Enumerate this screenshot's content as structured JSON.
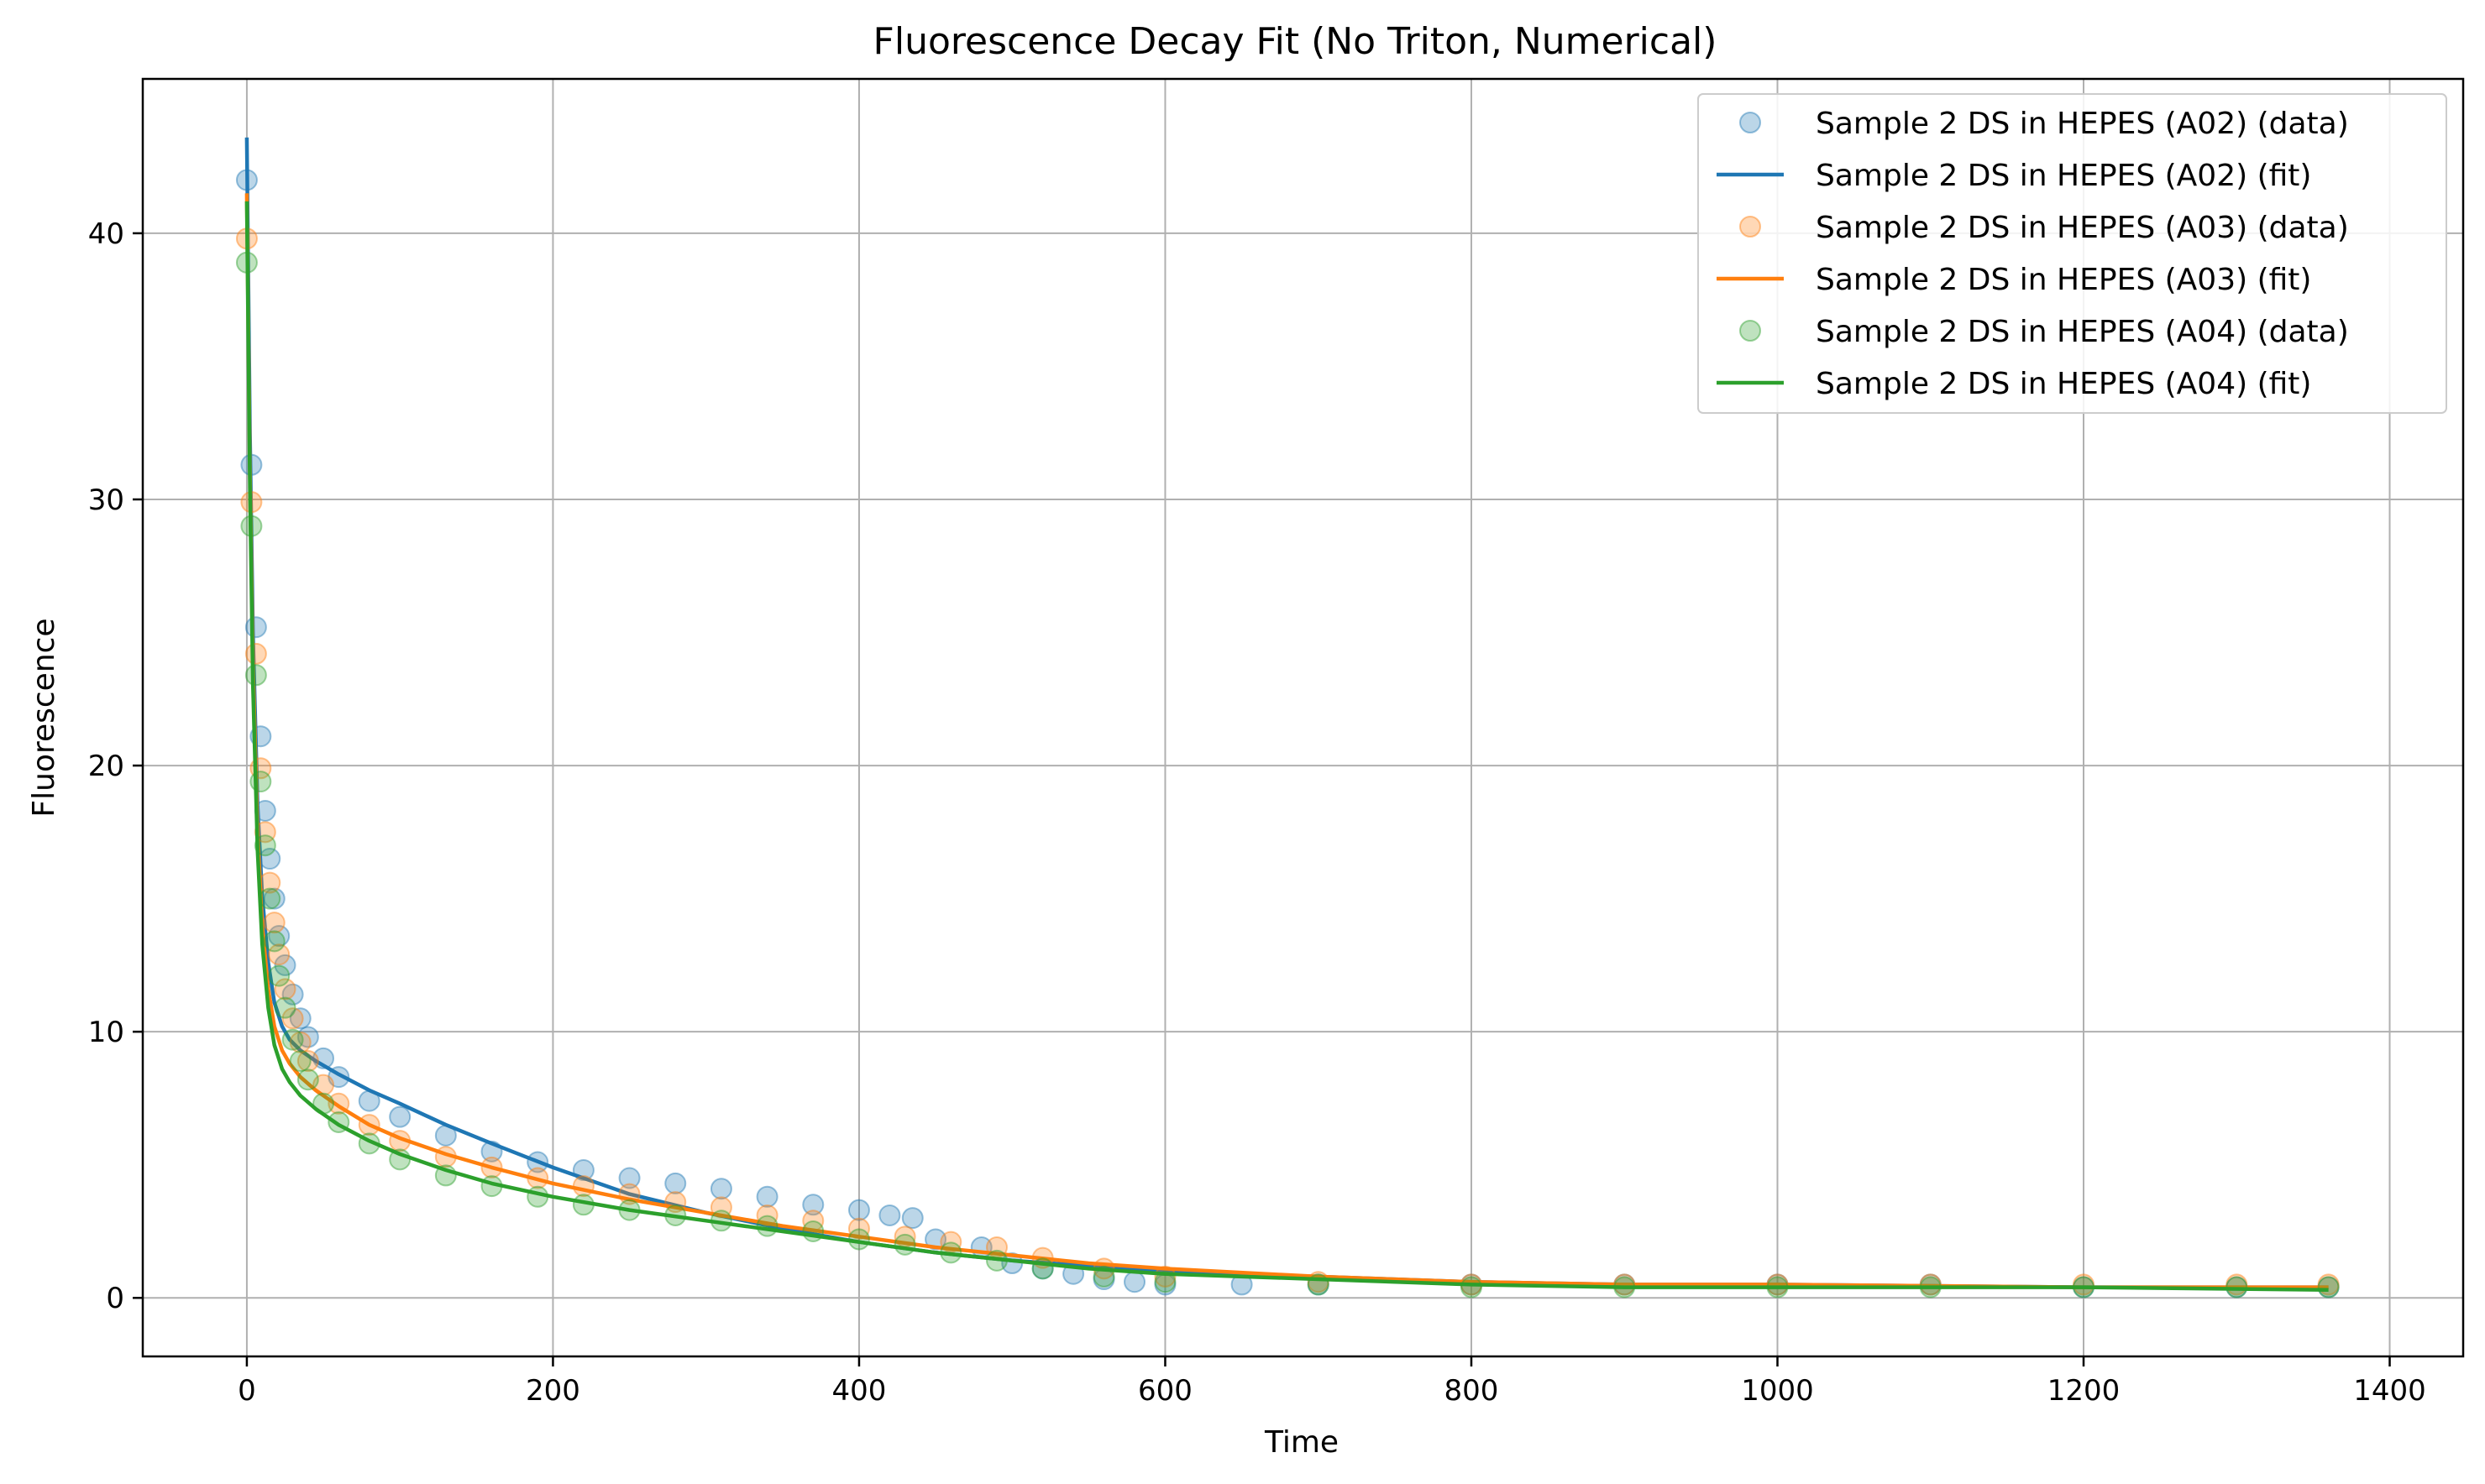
{
  "chart_data": {
    "type": "scatter",
    "title": "Fluorescence Decay Fit (No Triton, Numerical)",
    "xlabel": "Time",
    "ylabel": "Fluorescence",
    "xlim": [
      -68,
      1448
    ],
    "ylim": [
      -2.2,
      45.8
    ],
    "xticks": [
      0,
      200,
      400,
      600,
      800,
      1000,
      1200,
      1400
    ],
    "yticks": [
      0,
      10,
      20,
      30,
      40
    ],
    "grid": true,
    "legend_position": "top-right",
    "legend": [
      "Sample 2 DS in HEPES (A02) (data)",
      "Sample 2 DS in HEPES (A02) (fit)",
      "Sample 2 DS in HEPES (A03) (data)",
      "Sample 2 DS in HEPES (A03) (fit)",
      "Sample 2 DS in HEPES (A04) (data)",
      "Sample 2 DS in HEPES (A04) (fit)"
    ],
    "series": [
      {
        "name": "Sample 2 DS in HEPES (A02) (data)",
        "kind": "scatter",
        "color": "#1f77b4",
        "x": [
          0,
          3,
          6,
          9,
          12,
          15,
          18,
          21,
          25,
          30,
          35,
          40,
          50,
          60,
          80,
          100,
          130,
          160,
          190,
          220,
          250,
          280,
          310,
          340,
          370,
          400,
          420,
          435,
          450,
          480,
          500,
          520,
          540,
          560,
          580,
          600,
          650,
          700,
          800,
          900,
          1000,
          1100,
          1200,
          1300,
          1360
        ],
        "y": [
          42.0,
          31.3,
          25.2,
          21.1,
          18.3,
          16.5,
          15.0,
          13.6,
          12.5,
          11.4,
          10.5,
          9.8,
          9.0,
          8.3,
          7.4,
          6.8,
          6.1,
          5.5,
          5.1,
          4.8,
          4.5,
          4.3,
          4.1,
          3.8,
          3.5,
          3.3,
          3.1,
          3.0,
          2.2,
          1.9,
          1.3,
          1.1,
          0.9,
          0.7,
          0.6,
          0.5,
          0.5,
          0.5,
          0.5,
          0.5,
          0.5,
          0.5,
          0.4,
          0.4,
          0.4
        ]
      },
      {
        "name": "Sample 2 DS in HEPES (A02) (fit)",
        "kind": "line",
        "color": "#1f77b4",
        "x": [
          0,
          2,
          4,
          7,
          10,
          14,
          18,
          23,
          28,
          35,
          45,
          60,
          80,
          100,
          130,
          160,
          200,
          250,
          300,
          350,
          400,
          450,
          500,
          550,
          600,
          700,
          800,
          900,
          1000,
          1200,
          1360
        ],
        "y": [
          43.6,
          32.5,
          25.0,
          18.5,
          15.1,
          12.6,
          11.1,
          10.2,
          9.7,
          9.3,
          8.9,
          8.4,
          7.8,
          7.3,
          6.5,
          5.8,
          4.9,
          3.9,
          3.2,
          2.6,
          2.1,
          1.7,
          1.4,
          1.2,
          1.0,
          0.8,
          0.6,
          0.5,
          0.5,
          0.4,
          0.4
        ]
      },
      {
        "name": "Sample 2 DS in HEPES (A03) (data)",
        "kind": "scatter",
        "color": "#ff7f0e",
        "x": [
          0,
          3,
          6,
          9,
          12,
          15,
          18,
          21,
          25,
          30,
          35,
          40,
          50,
          60,
          80,
          100,
          130,
          160,
          190,
          220,
          250,
          280,
          310,
          340,
          370,
          400,
          430,
          460,
          490,
          520,
          560,
          600,
          700,
          800,
          900,
          1000,
          1100,
          1200,
          1300,
          1360
        ],
        "y": [
          39.8,
          29.9,
          24.2,
          19.9,
          17.5,
          15.6,
          14.1,
          12.9,
          11.6,
          10.5,
          9.6,
          8.9,
          8.0,
          7.3,
          6.5,
          5.9,
          5.3,
          4.9,
          4.5,
          4.2,
          3.9,
          3.6,
          3.4,
          3.1,
          2.9,
          2.6,
          2.3,
          2.1,
          1.9,
          1.5,
          1.1,
          0.8,
          0.6,
          0.5,
          0.5,
          0.5,
          0.5,
          0.5,
          0.5,
          0.5
        ]
      },
      {
        "name": "Sample 2 DS in HEPES (A03) (fit)",
        "kind": "line",
        "color": "#ff7f0e",
        "x": [
          0,
          2,
          4,
          7,
          10,
          14,
          18,
          23,
          28,
          35,
          45,
          60,
          80,
          100,
          130,
          160,
          200,
          250,
          300,
          350,
          400,
          450,
          500,
          550,
          600,
          700,
          800,
          900,
          1000,
          1200,
          1360
        ],
        "y": [
          41.5,
          31.0,
          23.8,
          17.5,
          14.0,
          11.6,
          10.2,
          9.3,
          8.8,
          8.3,
          7.8,
          7.2,
          6.5,
          6.0,
          5.4,
          4.9,
          4.3,
          3.7,
          3.2,
          2.7,
          2.3,
          1.9,
          1.6,
          1.3,
          1.1,
          0.8,
          0.6,
          0.5,
          0.5,
          0.4,
          0.4
        ]
      },
      {
        "name": "Sample 2 DS in HEPES (A04) (data)",
        "kind": "scatter",
        "color": "#2ca02c",
        "x": [
          0,
          3,
          6,
          9,
          12,
          15,
          18,
          21,
          25,
          30,
          35,
          40,
          50,
          60,
          80,
          100,
          130,
          160,
          190,
          220,
          250,
          280,
          310,
          340,
          370,
          400,
          430,
          460,
          490,
          520,
          560,
          600,
          700,
          800,
          900,
          1000,
          1100,
          1200,
          1300,
          1360
        ],
        "y": [
          38.9,
          29.0,
          23.4,
          19.4,
          17.0,
          15.0,
          13.4,
          12.1,
          10.9,
          9.7,
          8.9,
          8.2,
          7.3,
          6.6,
          5.8,
          5.2,
          4.6,
          4.2,
          3.8,
          3.5,
          3.3,
          3.1,
          2.9,
          2.7,
          2.5,
          2.2,
          2.0,
          1.7,
          1.4,
          1.1,
          0.8,
          0.6,
          0.5,
          0.4,
          0.4,
          0.4,
          0.4,
          0.4,
          0.4,
          0.4
        ]
      },
      {
        "name": "Sample 2 DS in HEPES (A04) (fit)",
        "kind": "line",
        "color": "#2ca02c",
        "x": [
          0,
          2,
          4,
          7,
          10,
          14,
          18,
          23,
          28,
          35,
          45,
          60,
          80,
          100,
          130,
          160,
          200,
          250,
          300,
          350,
          400,
          450,
          500,
          550,
          600,
          700,
          800,
          900,
          1000,
          1200,
          1360
        ],
        "y": [
          41.2,
          30.4,
          23.0,
          16.8,
          13.3,
          10.9,
          9.5,
          8.6,
          8.1,
          7.6,
          7.1,
          6.5,
          5.9,
          5.4,
          4.8,
          4.3,
          3.8,
          3.3,
          2.9,
          2.5,
          2.1,
          1.7,
          1.4,
          1.1,
          0.9,
          0.7,
          0.5,
          0.4,
          0.4,
          0.4,
          0.3
        ]
      }
    ]
  }
}
